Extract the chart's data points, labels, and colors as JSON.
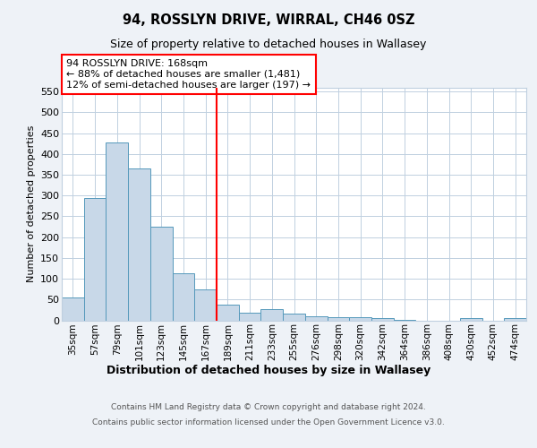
{
  "title": "94, ROSSLYN DRIVE, WIRRAL, CH46 0SZ",
  "subtitle": "Size of property relative to detached houses in Wallasey",
  "xlabel": "Distribution of detached houses by size in Wallasey",
  "ylabel": "Number of detached properties",
  "footer_line1": "Contains HM Land Registry data © Crown copyright and database right 2024.",
  "footer_line2": "Contains public sector information licensed under the Open Government Licence v3.0.",
  "bin_labels": [
    "35sqm",
    "57sqm",
    "79sqm",
    "101sqm",
    "123sqm",
    "145sqm",
    "167sqm",
    "189sqm",
    "211sqm",
    "233sqm",
    "255sqm",
    "276sqm",
    "298sqm",
    "320sqm",
    "342sqm",
    "364sqm",
    "386sqm",
    "408sqm",
    "430sqm",
    "452sqm",
    "474sqm"
  ],
  "bar_heights": [
    55,
    293,
    428,
    365,
    225,
    114,
    75,
    38,
    18,
    28,
    16,
    10,
    8,
    7,
    5,
    2,
    0,
    0,
    6,
    0,
    5
  ],
  "bar_color": "#c8d8e8",
  "bar_edge_color": "#5599bb",
  "vline_x": 6.5,
  "vline_color": "red",
  "annotation_text": "94 ROSSLYN DRIVE: 168sqm\n← 88% of detached houses are smaller (1,481)\n12% of semi-detached houses are larger (197) →",
  "annotation_box_color": "white",
  "annotation_box_edge": "red",
  "ylim": [
    0,
    560
  ],
  "yticks": [
    0,
    50,
    100,
    150,
    200,
    250,
    300,
    350,
    400,
    450,
    500,
    550
  ],
  "background_color": "#eef2f7",
  "plot_background": "white",
  "grid_color": "#c0d0e0"
}
